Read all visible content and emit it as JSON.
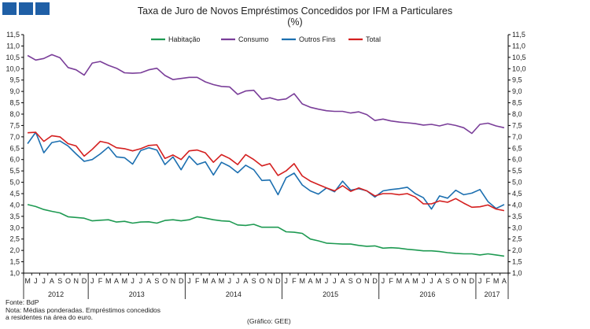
{
  "header": {
    "title": "Taxa de Juro de Novos Empréstimos Concedidos por IFM a Particulares",
    "subtitle": "(%)"
  },
  "footer": {
    "source": "Fonte: BdP",
    "note_line1": "Nota: Médias ponderadas. Empréstimos concedidos",
    "note_line2": "a residentes na área do euro.",
    "credit": "(Gráfico: GEE)"
  },
  "colors": {
    "logo": "#1f5fa6",
    "habitacao": "#1e9a52",
    "consumo": "#7a3e99",
    "outros_fins": "#1c6fb0",
    "total": "#d41f1f"
  },
  "chart_data": {
    "type": "line",
    "title": "Taxa de Juro de Novos Empréstimos Concedidos por IFM a Particulares",
    "subtitle": "(%)",
    "ylim": [
      1.0,
      11.5
    ],
    "ytick_step": 0.5,
    "grid": false,
    "legend_position": "top",
    "dual_y_axis": true,
    "month_labels": [
      "M",
      "J",
      "J",
      "A",
      "S",
      "O",
      "N",
      "D",
      "J",
      "F",
      "M",
      "A",
      "M",
      "J",
      "J",
      "A",
      "S",
      "O",
      "N",
      "D",
      "J",
      "F",
      "M",
      "A",
      "M",
      "J",
      "J",
      "A",
      "S",
      "O",
      "N",
      "D",
      "J",
      "F",
      "M",
      "A",
      "M",
      "J",
      "J",
      "A",
      "S",
      "O",
      "N",
      "D",
      "J",
      "F",
      "M",
      "A",
      "M",
      "J",
      "J",
      "A",
      "S",
      "O",
      "N",
      "D",
      "J",
      "F",
      "M",
      "A"
    ],
    "year_labels": [
      {
        "label": "2012",
        "start": 0,
        "end": 7
      },
      {
        "label": "2013",
        "start": 8,
        "end": 19
      },
      {
        "label": "2014",
        "start": 20,
        "end": 31
      },
      {
        "label": "2015",
        "start": 32,
        "end": 43
      },
      {
        "label": "2016",
        "start": 44,
        "end": 55
      },
      {
        "label": "2017",
        "start": 56,
        "end": 59
      }
    ],
    "series": [
      {
        "name": "Habitação",
        "color": "#1e9a52",
        "values": [
          4.02,
          3.93,
          3.8,
          3.72,
          3.65,
          3.48,
          3.45,
          3.42,
          3.3,
          3.33,
          3.35,
          3.25,
          3.28,
          3.2,
          3.25,
          3.26,
          3.2,
          3.32,
          3.35,
          3.3,
          3.35,
          3.48,
          3.42,
          3.35,
          3.3,
          3.28,
          3.12,
          3.1,
          3.15,
          3.02,
          3.02,
          3.02,
          2.82,
          2.8,
          2.75,
          2.5,
          2.42,
          2.32,
          2.3,
          2.28,
          2.28,
          2.22,
          2.18,
          2.2,
          2.1,
          2.12,
          2.1,
          2.05,
          2.02,
          1.98,
          1.98,
          1.95,
          1.9,
          1.87,
          1.85,
          1.85,
          1.8,
          1.85,
          1.8,
          1.75
        ]
      },
      {
        "name": "Consumo",
        "color": "#7a3e99",
        "values": [
          10.58,
          10.38,
          10.45,
          10.62,
          10.48,
          10.05,
          9.95,
          9.72,
          10.25,
          10.32,
          10.15,
          10.02,
          9.82,
          9.8,
          9.82,
          9.95,
          10.02,
          9.7,
          9.52,
          9.57,
          9.62,
          9.62,
          9.42,
          9.3,
          9.22,
          9.2,
          8.87,
          9.02,
          9.05,
          8.65,
          8.72,
          8.62,
          8.67,
          8.9,
          8.45,
          8.3,
          8.22,
          8.15,
          8.12,
          8.12,
          8.05,
          8.1,
          7.98,
          7.72,
          7.78,
          7.7,
          7.65,
          7.62,
          7.58,
          7.52,
          7.55,
          7.48,
          7.57,
          7.5,
          7.4,
          7.15,
          7.55,
          7.6,
          7.48,
          7.4
        ]
      },
      {
        "name": "Outros Fins",
        "color": "#1c6fb0",
        "values": [
          6.7,
          7.2,
          6.3,
          6.75,
          6.82,
          6.6,
          6.25,
          5.92,
          6.0,
          6.25,
          6.55,
          6.12,
          6.08,
          5.8,
          6.4,
          6.52,
          6.42,
          5.78,
          6.12,
          5.55,
          6.15,
          5.78,
          5.9,
          5.32,
          5.88,
          5.7,
          5.42,
          5.75,
          5.55,
          5.08,
          5.1,
          4.45,
          5.2,
          5.4,
          4.88,
          4.62,
          4.48,
          4.75,
          4.58,
          5.05,
          4.65,
          4.72,
          4.62,
          4.35,
          4.62,
          4.68,
          4.72,
          4.78,
          4.5,
          4.32,
          3.82,
          4.4,
          4.3,
          4.65,
          4.45,
          4.52,
          4.68,
          4.15,
          3.85,
          4.02
        ]
      },
      {
        "name": "Total",
        "color": "#d41f1f",
        "values": [
          7.18,
          7.2,
          6.8,
          7.05,
          7.0,
          6.7,
          6.6,
          6.15,
          6.45,
          6.8,
          6.72,
          6.52,
          6.48,
          6.38,
          6.48,
          6.62,
          6.65,
          6.05,
          6.2,
          6.0,
          6.38,
          6.42,
          6.3,
          5.88,
          6.22,
          6.05,
          5.78,
          6.22,
          6.0,
          5.72,
          5.82,
          5.3,
          5.5,
          5.82,
          5.28,
          5.05,
          4.9,
          4.75,
          4.62,
          4.85,
          4.6,
          4.75,
          4.62,
          4.4,
          4.5,
          4.5,
          4.45,
          4.5,
          4.35,
          4.05,
          4.05,
          4.18,
          4.12,
          4.28,
          4.08,
          3.9,
          3.92,
          4.0,
          3.82,
          3.75
        ]
      }
    ]
  }
}
